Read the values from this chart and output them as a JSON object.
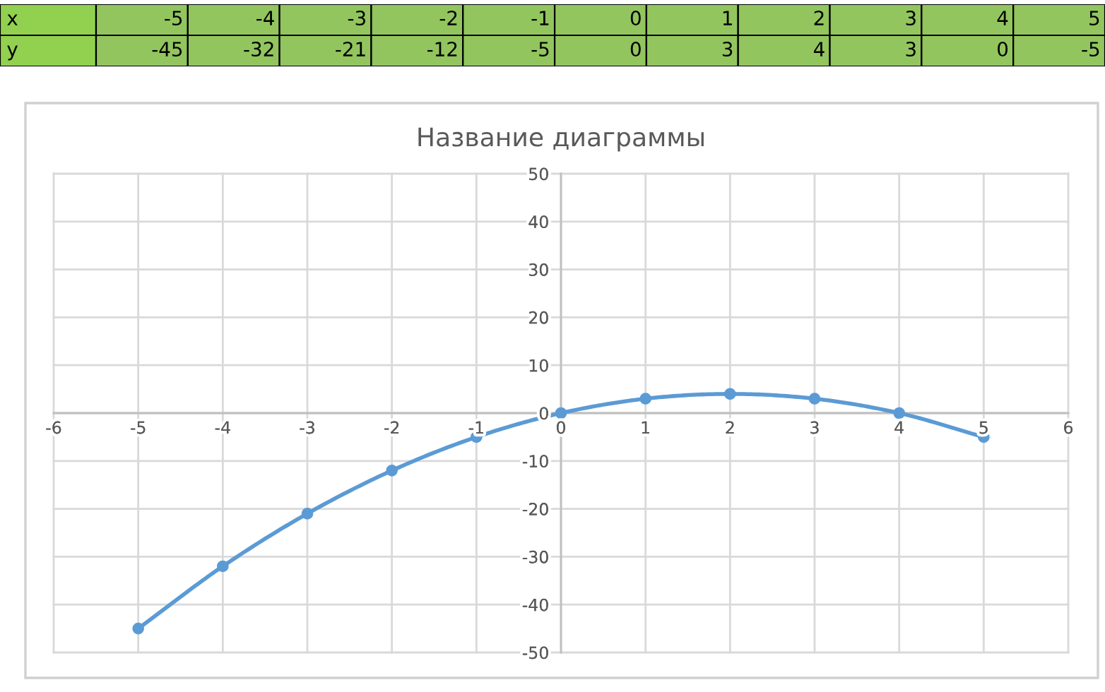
{
  "chart_data": {
    "type": "line",
    "title": "Название диаграммы",
    "x": [
      -5,
      -4,
      -3,
      -2,
      -1,
      0,
      1,
      2,
      3,
      4,
      5
    ],
    "values": [
      -45,
      -32,
      -21,
      -12,
      -5,
      0,
      3,
      4,
      3,
      0,
      -5
    ],
    "color": "#5b9bd5",
    "marker": "circle",
    "line_style": "solid",
    "xlim": [
      -6,
      6
    ],
    "xticks": [
      -6,
      -5,
      -4,
      -3,
      -2,
      -1,
      0,
      1,
      2,
      3,
      4,
      5,
      6
    ],
    "ylim": [
      -50,
      50
    ],
    "yticks": [
      -50,
      -40,
      -30,
      -20,
      -10,
      0,
      10,
      20,
      30,
      40,
      50
    ],
    "grid": true,
    "annotations": [
      "x",
      "-5",
      "-4",
      "-3",
      "-2",
      "-1",
      "0",
      "1",
      "2",
      "3",
      "4",
      "5",
      "y",
      "-45",
      "-32",
      "-21",
      "-12",
      "-5",
      "0",
      "3",
      "4",
      "3",
      "0",
      "-5"
    ]
  }
}
